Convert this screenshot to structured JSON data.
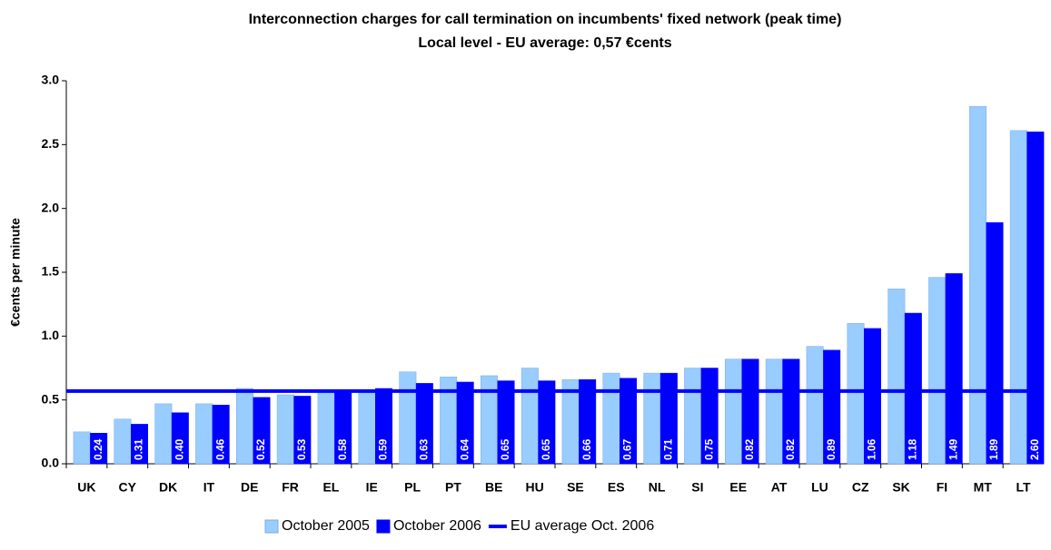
{
  "chart_data": {
    "type": "bar",
    "title": "Interconnection charges for call termination on incumbents' fixed network (peak time)",
    "subtitle": "Local level - EU average: 0,57 €cents",
    "y_label": "€cents per minute",
    "categories": [
      "UK",
      "CY",
      "DK",
      "IT",
      "DE",
      "FR",
      "EL",
      "IE",
      "PL",
      "PT",
      "BE",
      "HU",
      "SE",
      "ES",
      "NL",
      "SI",
      "EE",
      "AT",
      "LU",
      "CZ",
      "SK",
      "FI",
      "MT",
      "LT"
    ],
    "series": [
      {
        "name": "October 2005",
        "color": "#99ccff",
        "values": [
          0.25,
          0.35,
          0.47,
          0.47,
          0.59,
          0.54,
          0.58,
          0.58,
          0.72,
          0.68,
          0.69,
          0.75,
          0.66,
          0.71,
          0.71,
          0.75,
          0.82,
          0.82,
          0.92,
          1.1,
          1.37,
          1.46,
          2.8,
          2.61
        ]
      },
      {
        "name": "October 2006",
        "color": "#0000ff",
        "values": [
          0.24,
          0.31,
          0.4,
          0.46,
          0.52,
          0.53,
          0.58,
          0.59,
          0.63,
          0.64,
          0.65,
          0.65,
          0.66,
          0.67,
          0.71,
          0.75,
          0.82,
          0.82,
          0.89,
          1.06,
          1.18,
          1.49,
          1.89,
          2.6
        ],
        "value_labels": [
          "0.24",
          "0.31",
          "0.40",
          "0.46",
          "0.52",
          "0.53",
          "0.58",
          "0.59",
          "0.63",
          "0.64",
          "0.65",
          "0.65",
          "0.66",
          "0.67",
          "0.71",
          "0.75",
          "0.82",
          "0.82",
          "0.89",
          "1.06",
          "1.18",
          "1.49",
          "1.89",
          "2.60"
        ]
      }
    ],
    "average": {
      "name": "EU average Oct. 2006",
      "value": 0.57,
      "color": "#0000ff"
    },
    "ylim": [
      0,
      3
    ],
    "yticks": [
      {
        "value": 0,
        "label": "0.0"
      },
      0.5,
      {
        "value": 1,
        "label": "1.0"
      },
      1.5,
      {
        "value": 2,
        "label": "2.0"
      },
      2.5,
      {
        "value": 3,
        "label": "3.0"
      }
    ],
    "grid": false
  }
}
